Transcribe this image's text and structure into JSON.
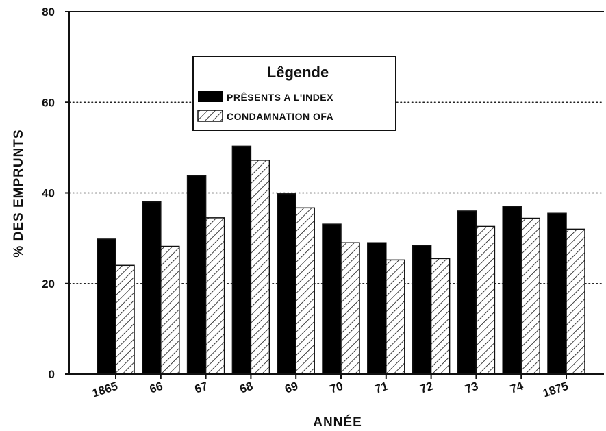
{
  "chart_data": {
    "type": "bar",
    "categories": [
      "1865",
      "66",
      "67",
      "68",
      "69",
      "70",
      "71",
      "72",
      "73",
      "74",
      "1875"
    ],
    "series": [
      {
        "name": "PRÊSENTS A L'INDEX",
        "values": [
          29.8,
          38.0,
          43.8,
          50.3,
          39.8,
          33.1,
          29.0,
          28.4,
          36.0,
          37.0,
          35.5
        ],
        "fill": "solid",
        "color": "#000000"
      },
      {
        "name": "CONDAMNATION OFA",
        "values": [
          24.0,
          28.2,
          34.5,
          47.2,
          36.7,
          29.0,
          25.2,
          25.5,
          32.6,
          34.4,
          32.0
        ],
        "fill": "hatched",
        "color": "#000000"
      }
    ],
    "title": "",
    "xlabel": "ANNÉE",
    "ylabel": "% DES EMPRUNTS",
    "ylim": [
      0,
      80
    ],
    "yticks": [
      0,
      20,
      40,
      60,
      80
    ],
    "grid": "dotted horizontal at 20, 40, 60",
    "legend": {
      "title": "Lêgende",
      "placement": "top-center"
    }
  }
}
